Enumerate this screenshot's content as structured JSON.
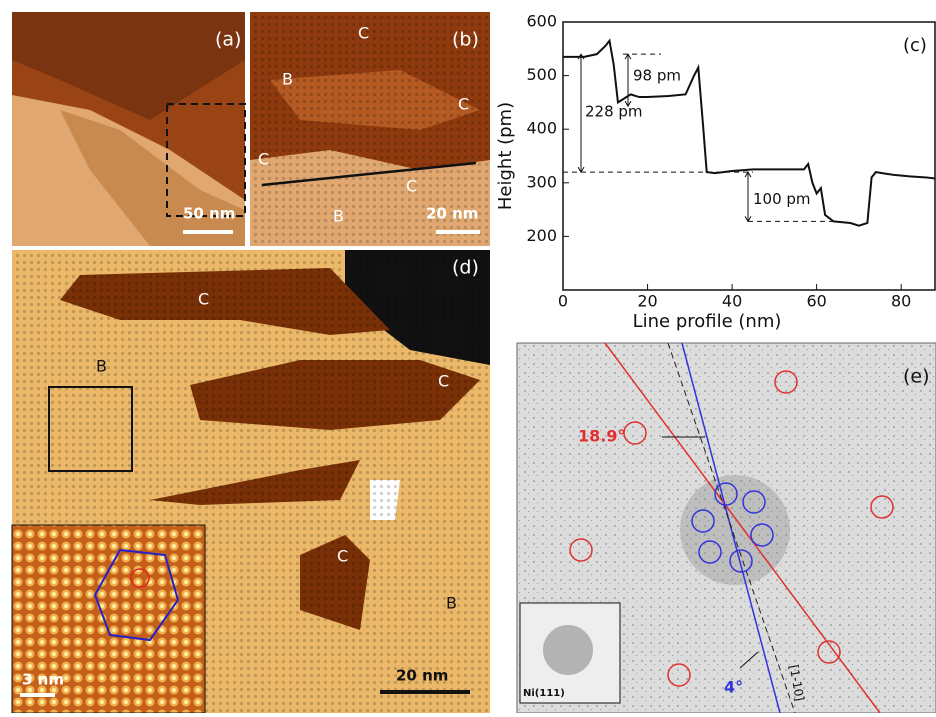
{
  "panels": {
    "a": {
      "label": "(a)",
      "scale_bar": "50 nm"
    },
    "b": {
      "label": "(b)",
      "regions": [
        "C",
        "B",
        "C",
        "C",
        "C",
        "B"
      ],
      "scale_bar": "20 nm"
    },
    "d": {
      "label": "(d)",
      "regions": [
        "C",
        "B",
        "C",
        "C",
        "B"
      ],
      "scale_bar": "20 nm",
      "inset_scale_bar": "3 nm"
    },
    "e": {
      "label": "(e)",
      "angles": [
        "18.9°",
        "4°"
      ],
      "direction": "[1-10]",
      "inset_label": "Ni(111)"
    }
  },
  "chart_data": {
    "type": "line",
    "label": "(c)",
    "x_label": "Line profile (nm)",
    "y_label": "Height (pm)",
    "x": [
      0,
      5,
      8,
      10,
      11,
      12,
      13,
      14,
      16,
      18,
      20,
      25,
      29,
      31,
      32,
      33,
      34,
      36,
      40,
      45,
      50,
      55,
      57,
      58,
      59,
      60,
      61,
      62,
      64,
      68,
      70,
      72,
      73,
      74,
      78,
      82,
      86,
      88
    ],
    "series": [
      {
        "color": "#111111",
        "values": [
          535,
          535,
          540,
          555,
          565,
          520,
          450,
          455,
          465,
          460,
          460,
          462,
          465,
          500,
          515,
          420,
          320,
          318,
          322,
          325,
          325,
          325,
          325,
          335,
          300,
          280,
          290,
          240,
          228,
          225,
          220,
          225,
          310,
          320,
          315,
          312,
          310,
          308
        ]
      }
    ],
    "xlim": [
      0,
      88
    ],
    "xticks": [
      0,
      20,
      40,
      60,
      80
    ],
    "ylim": [
      100,
      600
    ],
    "yticks": [
      200,
      300,
      400,
      500,
      600
    ],
    "reference_lines": [
      540,
      320,
      228
    ],
    "annotations": [
      "98 pm",
      "228 pm",
      "100 pm"
    ]
  }
}
